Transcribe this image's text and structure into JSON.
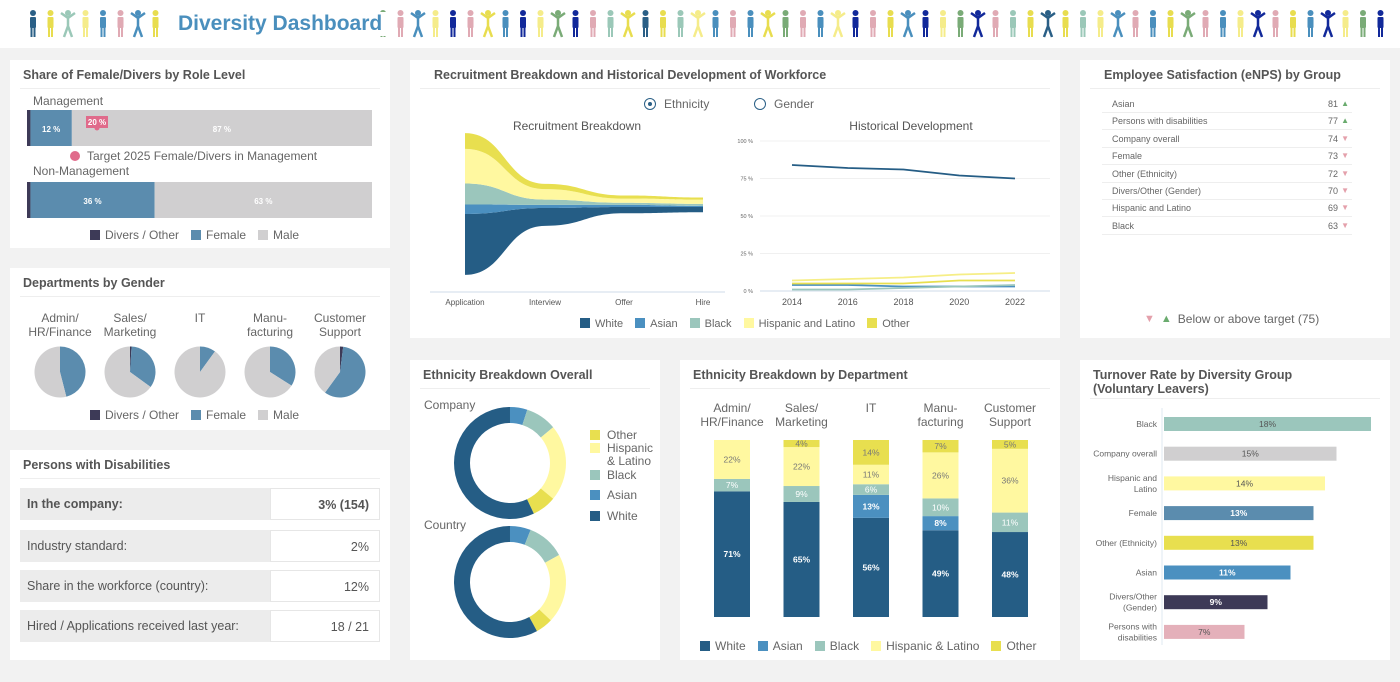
{
  "header": {
    "title": "Diversity Dashboard",
    "people_colors": [
      "#2a5f86",
      "#e8dd4f",
      "#9bc8b8",
      "#f5ec8a",
      "#4a8fbd",
      "#e0aab4",
      "#4a8fbd",
      "#e8dd4f",
      "#7aab77",
      "#e0aab4",
      "#4a8fbd",
      "#f5ec8a",
      "#12299a",
      "#e0aab4",
      "#e8dd4f",
      "#4a8fbd",
      "#12299a",
      "#f5ec8a",
      "#7aab77",
      "#12299a",
      "#e0aab4",
      "#9bc8b8",
      "#e8dd4f"
    ]
  },
  "colors": {
    "divers": "#3d3a57",
    "female": "#5b8cae",
    "male": "#d0cfd0",
    "white": "#255d85",
    "asian": "#4b90c0",
    "black": "#9bc6bc",
    "hispanic": "#fff8a0",
    "other": "#e8df4f",
    "target": "#e06b8b",
    "up": "#6aab6e",
    "down": "#e4a0ab"
  },
  "role_level": {
    "title": "Share of Female/Divers by Role Level",
    "rows": [
      {
        "label": "Management",
        "divers": 1,
        "female": 12,
        "male": 87,
        "female_label": "12 %",
        "male_label": "87 %"
      },
      {
        "label": "Non-Management",
        "divers": 1,
        "female": 36,
        "male": 63,
        "female_label": "36 %",
        "male_label": "63 %"
      }
    ],
    "target": {
      "value": 20,
      "label": "20 %",
      "legend": "Target 2025 Female/Divers in Management"
    },
    "legend": [
      "Divers / Other",
      "Female",
      "Male"
    ]
  },
  "dept_gender": {
    "title": "Departments by Gender",
    "departments": [
      {
        "name": "Admin/\nHR/Finance",
        "divers": 0,
        "female": 46,
        "male": 54
      },
      {
        "name": "Sales/\nMarketing",
        "divers": 1,
        "female": 34,
        "male": 65
      },
      {
        "name": "IT",
        "divers": 0,
        "female": 10,
        "male": 90
      },
      {
        "name": "Manu-\nfacturing",
        "divers": 0,
        "female": 34,
        "male": 66
      },
      {
        "name": "Customer\nSupport",
        "divers": 2,
        "female": 58,
        "male": 40
      }
    ],
    "legend": [
      "Divers / Other",
      "Female",
      "Male"
    ]
  },
  "disabilities": {
    "title": "Persons with Disabilities",
    "rows": [
      {
        "label": "In the company:",
        "value": "3% (154)"
      },
      {
        "label": "Industry standard:",
        "value": "2%"
      },
      {
        "label": "Share in the workforce (country):",
        "value": "12%"
      },
      {
        "label": "Hired / Applications received last year:",
        "value": "18 / 21"
      }
    ]
  },
  "recruitment": {
    "title": "Recruitment Breakdown and Historical Development of Workforce",
    "toggle": [
      {
        "label": "Ethnicity",
        "selected": true
      },
      {
        "label": "Gender",
        "selected": false
      }
    ],
    "legend": [
      "White",
      "Asian",
      "Black",
      "Hispanic and Latino",
      "Other"
    ]
  },
  "chart_data": [
    {
      "type": "area",
      "title": "Recruitment Breakdown",
      "categories": [
        "Application",
        "Interview",
        "Offer",
        "Hire"
      ],
      "series": [
        {
          "name": "White",
          "values": [
            58,
            17,
            6,
            5
          ]
        },
        {
          "name": "Asian",
          "values": [
            9,
            3,
            2,
            1
          ]
        },
        {
          "name": "Black",
          "values": [
            20,
            5,
            2,
            2
          ]
        },
        {
          "name": "Hispanic and Latino",
          "values": [
            33,
            10,
            4,
            4
          ]
        },
        {
          "name": "Other",
          "values": [
            15,
            5,
            3,
            2
          ]
        }
      ]
    },
    {
      "type": "line",
      "title": "Historical Development",
      "x": [
        2014,
        2016,
        2018,
        2020,
        2022
      ],
      "ylim": [
        0,
        100
      ],
      "yticks": [
        "0 %",
        "25 %",
        "50 %",
        "75 %",
        "100 %"
      ],
      "grid": true,
      "series": [
        {
          "name": "White",
          "values": [
            84,
            82,
            81,
            77,
            75
          ]
        },
        {
          "name": "Asian",
          "values": [
            4,
            4,
            3,
            3,
            3
          ]
        },
        {
          "name": "Black",
          "values": [
            1,
            1,
            2,
            3,
            4
          ]
        },
        {
          "name": "Hispanic and Latino",
          "values": [
            7,
            8,
            9,
            11,
            12
          ]
        },
        {
          "name": "Other",
          "values": [
            5,
            5,
            5,
            7,
            7
          ]
        }
      ]
    },
    {
      "type": "pie",
      "title": "Ethnicity Breakdown Overall",
      "donuts": [
        {
          "label": "Company",
          "values": {
            "asian": 5,
            "black": 9,
            "hispanic": 22,
            "other": 7,
            "white": 57
          }
        },
        {
          "label": "Country",
          "values": {
            "asian": 6,
            "black": 11,
            "hispanic": 20,
            "other": 5,
            "white": 58
          }
        }
      ],
      "legend": [
        "Other",
        "Hispanic\n& Latino",
        "Black",
        "Asian",
        "White"
      ]
    },
    {
      "type": "bar",
      "title": "Ethnicity Breakdown by Department",
      "categories": [
        "Admin/\nHR/Finance",
        "Sales/\nMarketing",
        "IT",
        "Manu-\nfacturing",
        "Customer\nSupport"
      ],
      "ylim": [
        0,
        100
      ],
      "series": [
        {
          "name": "White",
          "values": [
            71,
            65,
            56,
            49,
            48
          ]
        },
        {
          "name": "Asian",
          "values": [
            0,
            0,
            13,
            8,
            0
          ]
        },
        {
          "name": "Black",
          "values": [
            7,
            9,
            6,
            10,
            11
          ]
        },
        {
          "name": "Hispanic & Latino",
          "values": [
            22,
            22,
            11,
            26,
            36
          ]
        },
        {
          "name": "Other",
          "values": [
            0,
            4,
            14,
            7,
            5
          ]
        }
      ]
    },
    {
      "type": "bar",
      "orientation": "horizontal",
      "title": "Turnover Rate by Diversity Group\n(Voluntary Leavers)",
      "categories": [
        "Black",
        "Company overall",
        "Hispanic and\nLatino",
        "Female",
        "Other (Ethnicity)",
        "Asian",
        "Divers/Other\n(Gender)",
        "Persons with\ndisabilities"
      ],
      "values": [
        18,
        15,
        14,
        13,
        13,
        11,
        9,
        7
      ],
      "colors": [
        "#9bc6bc",
        "#d0cfd0",
        "#fff8a0",
        "#5b8cae",
        "#e8df4f",
        "#4b90c0",
        "#3d3a57",
        "#e4b0ba"
      ]
    }
  ],
  "ethnicity_overall": {
    "title": "Ethnicity Breakdown Overall"
  },
  "ethnicity_dept": {
    "title": "Ethnicity Breakdown by Department",
    "legend": [
      "White",
      "Asian",
      "Black",
      "Hispanic & Latino",
      "Other"
    ]
  },
  "enps": {
    "title": "Employee Satisfaction (eNPS) by Group",
    "target": 75,
    "rows": [
      {
        "group": "Asian",
        "value": 81
      },
      {
        "group": "Persons with disabilities",
        "value": 77
      },
      {
        "group": "Company overall",
        "value": 74
      },
      {
        "group": "Female",
        "value": 73
      },
      {
        "group": "Other (Ethnicity)",
        "value": 72
      },
      {
        "group": "Divers/Other (Gender)",
        "value": 70
      },
      {
        "group": "Hispanic and Latino",
        "value": 69
      },
      {
        "group": "Black",
        "value": 63
      }
    ],
    "legend": "Below or above target (75)"
  },
  "turnover": {
    "title": "Turnover Rate by Diversity Group\n(Voluntary Leavers)"
  }
}
